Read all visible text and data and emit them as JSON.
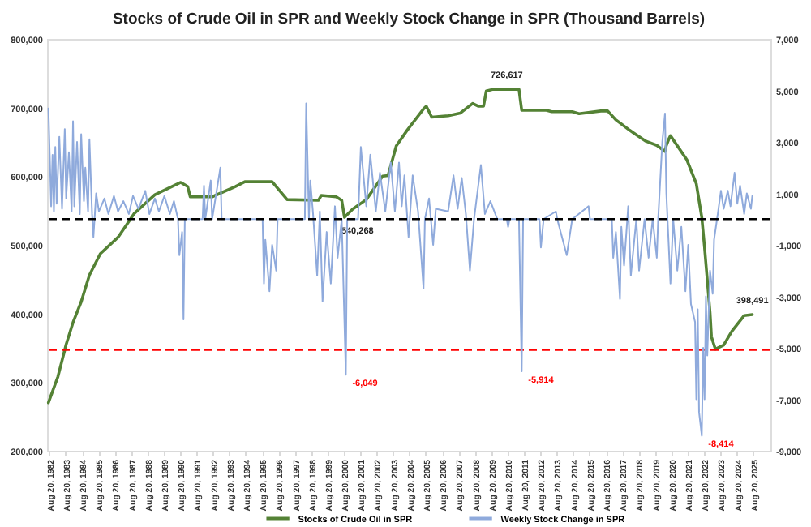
{
  "chart_data": {
    "type": "line",
    "title": "Stocks of Crude Oil in SPR and Weekly Stock Change in SPR (Thousand Barrels)",
    "xlim": [
      "1982-07-01",
      "2026-09-10"
    ],
    "xticks": [
      {
        "value": "1982-08-20",
        "label": "Aug 20, 1982"
      },
      {
        "value": "1983-08-20",
        "label": "Aug 20, 1983"
      },
      {
        "value": "1984-08-20",
        "label": "Aug 20, 1984"
      },
      {
        "value": "1985-08-20",
        "label": "Aug 20, 1985"
      },
      {
        "value": "1986-08-20",
        "label": "Aug 20, 1986"
      },
      {
        "value": "1987-08-20",
        "label": "Aug 20, 1987"
      },
      {
        "value": "1988-08-20",
        "label": "Aug 20, 1988"
      },
      {
        "value": "1989-08-20",
        "label": "Aug 20, 1989"
      },
      {
        "value": "1990-08-20",
        "label": "Aug 20, 1990"
      },
      {
        "value": "1991-08-20",
        "label": "Aug 20, 1991"
      },
      {
        "value": "1992-08-20",
        "label": "Aug 20, 1992"
      },
      {
        "value": "1993-08-20",
        "label": "Aug 20, 1993"
      },
      {
        "value": "1994-08-20",
        "label": "Aug 20, 1994"
      },
      {
        "value": "1995-08-20",
        "label": "Aug 20, 1995"
      },
      {
        "value": "1996-08-20",
        "label": "Aug 20, 1996"
      },
      {
        "value": "1997-08-20",
        "label": "Aug 20, 1997"
      },
      {
        "value": "1998-08-20",
        "label": "Aug 20, 1998"
      },
      {
        "value": "1999-08-20",
        "label": "Aug 20, 1999"
      },
      {
        "value": "2000-08-20",
        "label": "Aug 20, 2000"
      },
      {
        "value": "2001-08-20",
        "label": "Aug 20, 2001"
      },
      {
        "value": "2002-08-20",
        "label": "Aug 20, 2002"
      },
      {
        "value": "2003-08-20",
        "label": "Aug 20, 2003"
      },
      {
        "value": "2004-08-20",
        "label": "Aug 20, 2004"
      },
      {
        "value": "2005-08-20",
        "label": "Aug 20, 2005"
      },
      {
        "value": "2006-08-20",
        "label": "Aug 20, 2006"
      },
      {
        "value": "2007-08-20",
        "label": "Aug 20, 2007"
      },
      {
        "value": "2008-08-20",
        "label": "Aug 20, 2008"
      },
      {
        "value": "2009-08-20",
        "label": "Aug 20, 2009"
      },
      {
        "value": "2010-08-20",
        "label": "Aug 20, 2010"
      },
      {
        "value": "2011-08-20",
        "label": "Aug 20, 2011"
      },
      {
        "value": "2012-08-20",
        "label": "Aug 20, 2012"
      },
      {
        "value": "2013-08-20",
        "label": "Aug 20, 2013"
      },
      {
        "value": "2014-08-20",
        "label": "Aug 20, 2014"
      },
      {
        "value": "2015-08-20",
        "label": "Aug 20, 2015"
      },
      {
        "value": "2016-08-20",
        "label": "Aug 20, 2016"
      },
      {
        "value": "2017-08-20",
        "label": "Aug 20, 2017"
      },
      {
        "value": "2018-08-20",
        "label": "Aug 20, 2018"
      },
      {
        "value": "2019-08-20",
        "label": "Aug 20, 2019"
      },
      {
        "value": "2020-08-20",
        "label": "Aug 20, 2020"
      },
      {
        "value": "2021-08-20",
        "label": "Aug 20, 2021"
      },
      {
        "value": "2022-08-20",
        "label": "Aug 20, 2022"
      },
      {
        "value": "2023-08-20",
        "label": "Aug 20, 2023"
      },
      {
        "value": "2024-08-20",
        "label": "Aug 20, 2024"
      },
      {
        "value": "2025-08-20",
        "label": "Aug 20, 2025"
      }
    ],
    "ylim": [
      200000,
      800000
    ],
    "yticks": [
      {
        "value": 200000,
        "label": "200,000"
      },
      {
        "value": 300000,
        "label": "300,000"
      },
      {
        "value": 400000,
        "label": "400,000"
      },
      {
        "value": 500000,
        "label": "500,000"
      },
      {
        "value": 600000,
        "label": "600,000"
      },
      {
        "value": 700000,
        "label": "700,000"
      },
      {
        "value": 800000,
        "label": "800,000"
      }
    ],
    "y2lim": [
      -9000,
      7000
    ],
    "y2ticks": [
      {
        "value": -9000,
        "label": "-9,000"
      },
      {
        "value": -7000,
        "label": "-7,000"
      },
      {
        "value": -5000,
        "label": "-5,000"
      },
      {
        "value": -3000,
        "label": "-3,000"
      },
      {
        "value": -1000,
        "label": "-1,000"
      },
      {
        "value": 1000,
        "label": "1,000"
      },
      {
        "value": 3000,
        "label": "3,000"
      },
      {
        "value": 5000,
        "label": "5,000"
      },
      {
        "value": 7000,
        "label": "7,000"
      }
    ],
    "grid": false,
    "legend": "bottom",
    "series": [
      {
        "name": "Stocks of Crude Oil in SPR",
        "color": "#548235",
        "x": [
          "1982-08",
          "1983-03",
          "1983-09",
          "1984-02",
          "1984-08",
          "1985-02",
          "1985-10",
          "1986-11",
          "1987-11",
          "1989-02",
          "1990-09",
          "1991-02",
          "1991-04",
          "1992-08",
          "1994-01",
          "1994-08",
          "1996-04",
          "1997-03",
          "1999-02",
          "1999-04",
          "2000-03",
          "2000-07",
          "2000-09",
          "2001-03",
          "2002-01",
          "2003-01",
          "2003-05",
          "2003-11",
          "2004-07",
          "2005-07",
          "2005-09",
          "2006-01",
          "2007-01",
          "2007-10",
          "2008-07",
          "2008-11",
          "2009-03",
          "2009-05",
          "2009-10",
          "2011-05",
          "2011-07",
          "2013-01",
          "2013-05",
          "2014-08",
          "2015-01",
          "2016-05",
          "2016-10",
          "2017-04",
          "2018-02",
          "2018-05",
          "2019-02",
          "2019-10",
          "2020-04",
          "2020-05",
          "2020-07",
          "2020-08",
          "2021-08",
          "2022-03",
          "2022-07",
          "2022-09",
          "2023-01",
          "2023-02",
          "2023-05",
          "2023-11",
          "2024-05",
          "2025-02",
          "2025-08"
        ],
        "values": [
          270000,
          308000,
          355000,
          387000,
          417000,
          456000,
          487000,
          511000,
          546000,
          573000,
          591000,
          585000,
          570000,
          570000,
          585000,
          592000,
          592000,
          566000,
          565000,
          572000,
          570000,
          565000,
          540268,
          552000,
          566000,
          600000,
          601000,
          644000,
          667000,
          698000,
          702000,
          686000,
          688000,
          692000,
          706000,
          702000,
          702000,
          724000,
          726617,
          726617,
          696000,
          696000,
          694000,
          694000,
          691000,
          695000,
          695000,
          682000,
          667000,
          663000,
          651000,
          645000,
          636000,
          645000,
          655000,
          659000,
          624000,
          589000,
          540000,
          496000,
          401000,
          366000,
          348000,
          354000,
          374000,
          397000,
          398491
        ]
      },
      {
        "name": "Weekly Stock Change in SPR",
        "color": "#8faadc",
        "axis": "y2",
        "x": [
          "1982-08",
          "1982-10",
          "1982-11",
          "1982-12",
          "1983-01",
          "1983-02",
          "1983-04",
          "1983-06",
          "1983-08",
          "1983-09",
          "1983-11",
          "1984-01",
          "1984-02",
          "1984-03",
          "1984-05",
          "1984-07",
          "1984-08",
          "1984-10",
          "1984-11",
          "1985-01",
          "1985-02",
          "1985-04",
          "1985-05",
          "1985-07",
          "1985-09",
          "1986-01",
          "1986-04",
          "1986-08",
          "1986-11",
          "1987-03",
          "1987-07",
          "1987-10",
          "1988-02",
          "1988-07",
          "1988-10",
          "1989-02",
          "1989-05",
          "1989-09",
          "1990-01",
          "1990-04",
          "1990-07",
          "1990-08",
          "1990-10",
          "1990-11",
          "1990-12",
          "1992-01",
          "1992-02",
          "1992-03",
          "1992-07",
          "1992-08",
          "1993-02",
          "1993-03",
          "1995-09",
          "1995-10",
          "1995-11",
          "1996-02",
          "1996-04",
          "1996-07",
          "1996-08",
          "1998-04",
          "1998-05",
          "1998-07",
          "1998-08",
          "1998-10",
          "1999-01",
          "1999-03",
          "1999-05",
          "1999-08",
          "1999-11",
          "2000-02",
          "2000-04",
          "2000-07",
          "2000-10",
          "2000-11",
          "2001-07",
          "2001-09",
          "2002-01",
          "2002-04",
          "2002-08",
          "2002-11",
          "2003-03",
          "2003-07",
          "2003-10",
          "2004-01",
          "2004-03",
          "2004-05",
          "2004-08",
          "2004-11",
          "2005-03",
          "2005-07",
          "2005-08",
          "2005-11",
          "2006-02",
          "2006-04",
          "2007-01",
          "2007-05",
          "2007-08",
          "2007-11",
          "2008-02",
          "2008-05",
          "2008-08",
          "2009-01",
          "2009-04",
          "2009-08",
          "2010-01",
          "2010-08",
          "2010-09",
          "2010-10",
          "2011-05",
          "2011-07",
          "2011-08",
          "2012-08",
          "2012-09",
          "2012-11",
          "2013-08",
          "2013-09",
          "2014-04",
          "2014-08",
          "2015-08",
          "2015-09",
          "2017-01",
          "2017-02",
          "2017-04",
          "2017-07",
          "2017-08",
          "2017-10",
          "2018-01",
          "2018-03",
          "2018-07",
          "2018-09",
          "2019-01",
          "2019-04",
          "2019-07",
          "2019-10",
          "2019-11",
          "2020-02",
          "2020-04",
          "2020-05",
          "2020-08",
          "2020-10",
          "2021-01",
          "2021-04",
          "2021-07",
          "2021-09",
          "2021-11",
          "2022-02",
          "2022-03",
          "2022-04",
          "2022-05",
          "2022-07",
          "2022-08",
          "2022-09",
          "2022-10",
          "2022-11",
          "2023-01",
          "2023-03",
          "2023-04",
          "2023-07",
          "2023-09",
          "2023-11",
          "2024-02",
          "2024-04",
          "2024-07",
          "2024-09",
          "2024-11",
          "2025-02",
          "2025-04",
          "2025-07",
          "2025-08"
        ],
        "values": [
          4300,
          500,
          2500,
          300,
          2800,
          600,
          3200,
          400,
          3500,
          800,
          2600,
          300,
          3800,
          500,
          3000,
          200,
          3300,
          700,
          2000,
          300,
          3100,
          200,
          -700,
          1000,
          300,
          800,
          200,
          900,
          300,
          700,
          200,
          900,
          400,
          1100,
          200,
          800,
          300,
          900,
          200,
          700,
          0,
          -1400,
          -500,
          -3900,
          0,
          0,
          1300,
          0,
          1500,
          0,
          2000,
          0,
          0,
          -2500,
          -800,
          -2800,
          -1000,
          -2000,
          0,
          0,
          4500,
          0,
          1500,
          200,
          -2200,
          300,
          -3200,
          -500,
          -2500,
          500,
          -1500,
          0,
          -6049,
          0,
          0,
          2800,
          500,
          2500,
          300,
          1800,
          300,
          2200,
          300,
          2200,
          500,
          1700,
          -700,
          1700,
          300,
          -2700,
          0,
          800,
          -1000,
          400,
          300,
          1700,
          400,
          1600,
          200,
          -2000,
          0,
          2100,
          200,
          700,
          0,
          0,
          -300,
          0,
          0,
          -5914,
          0,
          0,
          -1100,
          0,
          300,
          0,
          -1400,
          0,
          500,
          0,
          0,
          -1500,
          -500,
          -3100,
          -300,
          -1800,
          500,
          -2200,
          0,
          -2000,
          0,
          -1500,
          0,
          -1500,
          0,
          3000,
          4100,
          1000,
          -2500,
          0,
          -2000,
          -300,
          -2800,
          -1000,
          -3300,
          -4000,
          -7000,
          -3500,
          -7500,
          -8414,
          -5000,
          -7000,
          -3000,
          -5300,
          -2000,
          -2900,
          -800,
          300,
          1100,
          400,
          1100,
          500,
          1800,
          600,
          1300,
          200,
          1000,
          400,
          900
        ],
        "value_labels": [
          null,
          null,
          null,
          null,
          null,
          null,
          null,
          null,
          null,
          null,
          null,
          null,
          null,
          null,
          null,
          null,
          null,
          null,
          null,
          null,
          null,
          null,
          null,
          null,
          null,
          null,
          null,
          null,
          null,
          null,
          null,
          null,
          null,
          null,
          null,
          null,
          null,
          null,
          null,
          null,
          null,
          null,
          null,
          null,
          null,
          null,
          null,
          null,
          null,
          null,
          null,
          null,
          null,
          null,
          null,
          null,
          null,
          null,
          null,
          null,
          null,
          null,
          null,
          null,
          null,
          null,
          null,
          null,
          null,
          null,
          null,
          null,
          "-6,049",
          null,
          null,
          null,
          null,
          null,
          null,
          null,
          null,
          null,
          null,
          null,
          null,
          null,
          null,
          null,
          null,
          null,
          null,
          null,
          null,
          null,
          null,
          null,
          null,
          null,
          null,
          null,
          null,
          null,
          null,
          null,
          null,
          null,
          null,
          null,
          null,
          "-5,914",
          null,
          null,
          null,
          null,
          null,
          null,
          null,
          null,
          null,
          null,
          null,
          null,
          null,
          null,
          null,
          null,
          null,
          null,
          null,
          null,
          null,
          null,
          null,
          null,
          null,
          null,
          null,
          null,
          null,
          null,
          null,
          null,
          null,
          null,
          null,
          null,
          null,
          null,
          null,
          "-8,414",
          null,
          null,
          null,
          null,
          null,
          null,
          null,
          null,
          null,
          null,
          null,
          null,
          null,
          null,
          null,
          null,
          null,
          null,
          null
        ]
      }
    ],
    "ref_lines": [
      {
        "axis": "y2",
        "value": 0,
        "color": "#000000",
        "line_style": "dashed"
      },
      {
        "axis": "y",
        "value": 347000,
        "color": "#ff0000",
        "line_style": "dashed"
      }
    ],
    "annotations": [
      {
        "text": "726,617",
        "x": "2010-08",
        "y": 726617
      },
      {
        "text": "540,268",
        "x": "2000-09",
        "y": 540268
      },
      {
        "text": "398,491",
        "x": "2025-08",
        "y": 398491
      }
    ]
  }
}
